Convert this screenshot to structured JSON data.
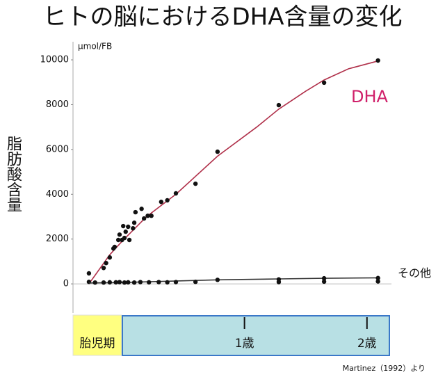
{
  "chart_data": {
    "type": "scatter",
    "title": "ヒトの脳におけるDHA含量の変化",
    "y_label": "脂肪酸含量",
    "y_unit": "μmol/FB",
    "source": "Martinez（1992）より",
    "fetal_label": "胎児期",
    "xlim": [
      -0.4,
      2.2
    ],
    "xticks": [
      {
        "value": 1,
        "label": "1歳"
      },
      {
        "value": 2,
        "label": "2歳"
      }
    ],
    "ylim": [
      -1300,
      10700
    ],
    "yticks": [
      0,
      2000,
      4000,
      6000,
      8000,
      10000
    ],
    "marker_color": "#111111",
    "series": [
      {
        "name": "DHA",
        "color": "#b0304a",
        "x": [
          -0.27,
          -0.27,
          -0.15,
          -0.13,
          -0.1,
          -0.07,
          -0.06,
          -0.03,
          -0.02,
          0,
          0.01,
          0.02,
          0.03,
          0.05,
          0.06,
          0.09,
          0.1,
          0.11,
          0.16,
          0.18,
          0.21,
          0.24,
          0.32,
          0.37,
          0.44,
          0.6,
          0.78,
          1.28,
          1.65,
          2.09
        ],
        "values": [
          470,
          90,
          710,
          930,
          1180,
          1580,
          1650,
          1960,
          2200,
          1960,
          2580,
          2050,
          2330,
          2550,
          1960,
          2480,
          2730,
          3200,
          3350,
          2920,
          3040,
          3040,
          3660,
          3730,
          4040,
          4470,
          5900,
          7980,
          8980,
          9970
        ],
        "curve": {
          "x": [
            -0.27,
            -0.1,
            0,
            0.2,
            0.44,
            0.78,
            1.1,
            1.28,
            1.5,
            1.65,
            1.85,
            2.09
          ],
          "values": [
            0,
            1300,
            1900,
            3000,
            4000,
            5700,
            7000,
            7800,
            8600,
            9100,
            9600,
            9950
          ]
        }
      },
      {
        "name": "その他",
        "color": "#333333",
        "x": [
          -0.22,
          -0.15,
          -0.1,
          -0.05,
          -0.02,
          0.02,
          0.05,
          0.1,
          0.15,
          0.22,
          0.3,
          0.37,
          0.44,
          0.6,
          0.78,
          1.28,
          1.28,
          1.65,
          1.65,
          2.09,
          2.09
        ],
        "values": [
          60,
          60,
          70,
          70,
          80,
          60,
          70,
          60,
          80,
          70,
          80,
          70,
          80,
          90,
          180,
          200,
          80,
          250,
          100,
          260,
          110
        ],
        "curve": {
          "x": [
            -0.27,
            0,
            0.78,
            1.28,
            1.65,
            2.09
          ],
          "values": [
            40,
            60,
            180,
            220,
            250,
            270
          ]
        }
      }
    ]
  }
}
